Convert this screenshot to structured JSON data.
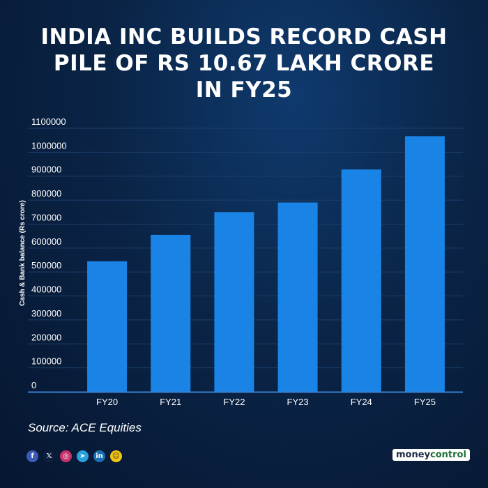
{
  "chart_data": {
    "type": "bar",
    "title_lines": [
      "INDIA INC BUILDS RECORD CASH",
      "PILE OF RS 10.67 LAKH CRORE",
      "IN FY25"
    ],
    "categories": [
      "FY20",
      "FY21",
      "FY22",
      "FY23",
      "FY24",
      "FY25"
    ],
    "values": [
      545000,
      655000,
      750000,
      790000,
      928000,
      1067000
    ],
    "ylabel": "Cash & Bank balance (Rs crore)",
    "xlabel": "",
    "ylim": [
      0,
      1100000
    ],
    "yticks": [
      0,
      100000,
      200000,
      300000,
      400000,
      500000,
      600000,
      700000,
      800000,
      900000,
      1000000,
      1100000
    ],
    "grid": true,
    "bar_color": "#1a84e6"
  },
  "source": "Source: ACE Equities",
  "social_icons": [
    {
      "name": "facebook-icon",
      "glyph": "f",
      "color": "#3b5bb5"
    },
    {
      "name": "x-icon",
      "glyph": "𝕏",
      "color": "#0b1f3f"
    },
    {
      "name": "instagram-icon",
      "glyph": "◎",
      "color": "#c8336e"
    },
    {
      "name": "telegram-icon",
      "glyph": "➤",
      "color": "#2aa0dc"
    },
    {
      "name": "linkedin-icon",
      "glyph": "in",
      "color": "#1a6fb3"
    },
    {
      "name": "snapchat-icon",
      "glyph": "☺",
      "color": "#f1c40f"
    }
  ],
  "brand": {
    "part1": "money",
    "part2": "control"
  }
}
